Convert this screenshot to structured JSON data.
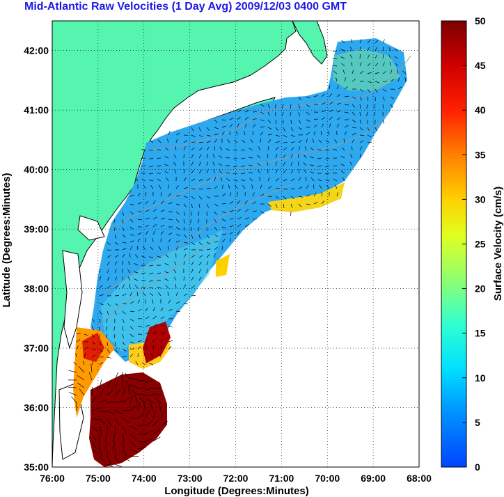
{
  "title": "Mid-Atlantic Raw Velocities (1 Day Avg) 2009/12/03 0400 GMT",
  "map": {
    "xlabel": "Longitude (Degrees:Minutes)",
    "ylabel": "Latitude (Degrees:Minutes)",
    "lon_ticks": [
      "76:00",
      "75:00",
      "74:00",
      "73:00",
      "72:00",
      "71:00",
      "70:00",
      "69:00",
      "68:00"
    ],
    "lat_ticks": [
      "42:00",
      "41:00",
      "40:00",
      "39:00",
      "38:00",
      "37:00",
      "36:00",
      "35:00"
    ],
    "lon_range": [
      -76,
      -68
    ],
    "lat_range": [
      35,
      42.5
    ],
    "land_color": "#55f5b0",
    "ocean_color": "#ffffff",
    "bathymetry_color": "#999999",
    "grid": "dotted"
  },
  "colorbar": {
    "label": "Surface Velocity (cm/s)",
    "ticks": [
      "0",
      "5",
      "10",
      "15",
      "20",
      "25",
      "30",
      "35",
      "40",
      "45",
      "50"
    ],
    "range": [
      0,
      50
    ]
  }
}
